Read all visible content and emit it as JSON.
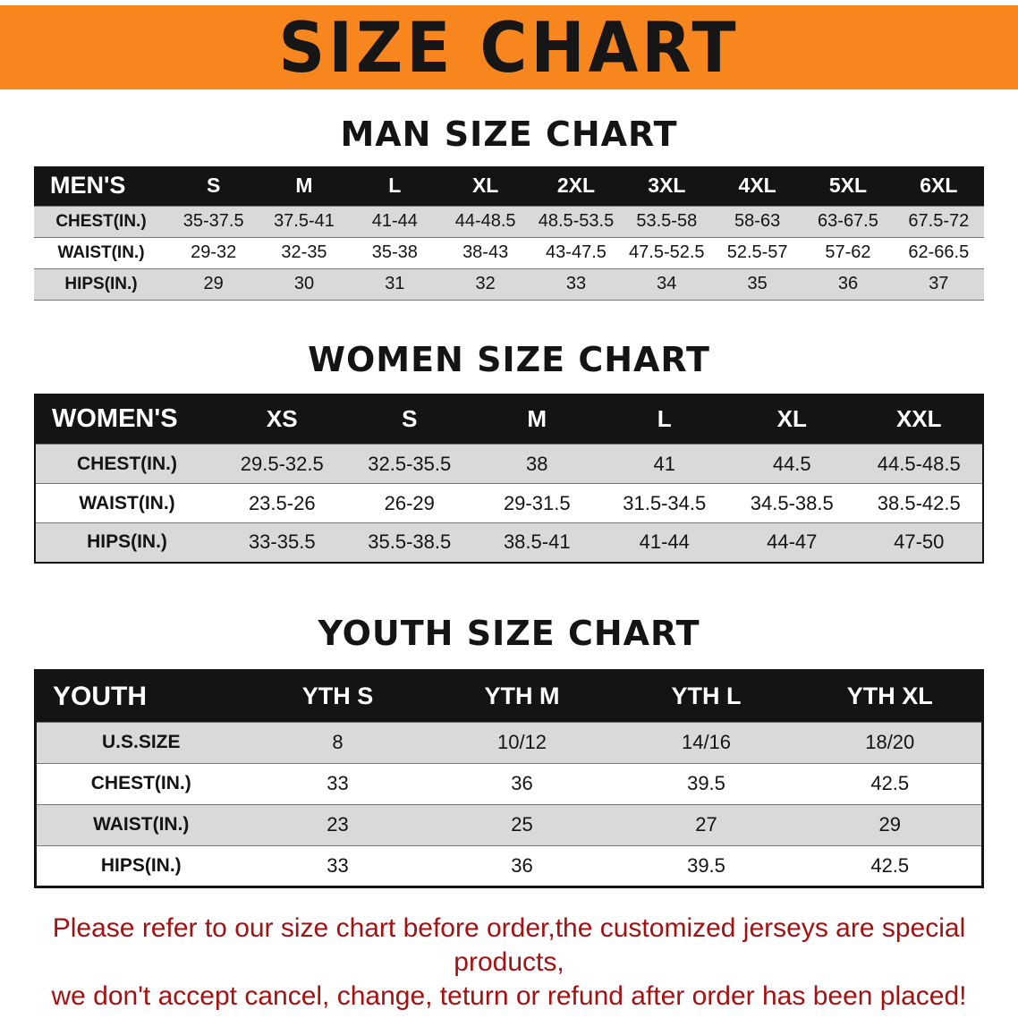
{
  "banner": {
    "title": "SIZE CHART"
  },
  "colors": {
    "banner_bg": "#F6861D",
    "table_header_bg": "#141414",
    "row_stripe": "#D9D9D9",
    "footnote_text": "#A31212"
  },
  "chart_data": [
    {
      "type": "table",
      "title": "MAN SIZE CHART",
      "header": [
        "MEN'S",
        "S",
        "M",
        "L",
        "XL",
        "2XL",
        "3XL",
        "4XL",
        "5XL",
        "6XL"
      ],
      "rows": [
        [
          "CHEST(IN.)",
          "35-37.5",
          "37.5-41",
          "41-44",
          "44-48.5",
          "48.5-53.5",
          "53.5-58",
          "58-63",
          "63-67.5",
          "67.5-72"
        ],
        [
          "WAIST(IN.)",
          "29-32",
          "32-35",
          "35-38",
          "38-43",
          "43-47.5",
          "47.5-52.5",
          "52.5-57",
          "57-62",
          "62-66.5"
        ],
        [
          "HIPS(IN.)",
          "29",
          "30",
          "31",
          "32",
          "33",
          "34",
          "35",
          "36",
          "37"
        ]
      ]
    },
    {
      "type": "table",
      "title": "WOMEN SIZE CHART",
      "header": [
        "WOMEN'S",
        "XS",
        "S",
        "M",
        "L",
        "XL",
        "XXL"
      ],
      "rows": [
        [
          "CHEST(IN.)",
          "29.5-32.5",
          "32.5-35.5",
          "38",
          "41",
          "44.5",
          "44.5-48.5"
        ],
        [
          "WAIST(IN.)",
          "23.5-26",
          "26-29",
          "29-31.5",
          "31.5-34.5",
          "34.5-38.5",
          "38.5-42.5"
        ],
        [
          "HIPS(IN.)",
          "33-35.5",
          "35.5-38.5",
          "38.5-41",
          "41-44",
          "44-47",
          "47-50"
        ]
      ]
    },
    {
      "type": "table",
      "title": "YOUTH SIZE CHART",
      "header": [
        "YOUTH",
        "YTH S",
        "YTH M",
        "YTH L",
        "YTH XL"
      ],
      "rows": [
        [
          "U.S.SIZE",
          "8",
          "10/12",
          "14/16",
          "18/20"
        ],
        [
          "CHEST(IN.)",
          "33",
          "36",
          "39.5",
          "42.5"
        ],
        [
          "WAIST(IN.)",
          "23",
          "25",
          "27",
          "29"
        ],
        [
          "HIPS(IN.)",
          "33",
          "36",
          "39.5",
          "42.5"
        ]
      ]
    }
  ],
  "footnote": {
    "lines": [
      "Please refer to our size chart before order,the customized jerseys are special products,",
      "we don't accept cancel, change, teturn or refund after order has been placed!"
    ]
  }
}
